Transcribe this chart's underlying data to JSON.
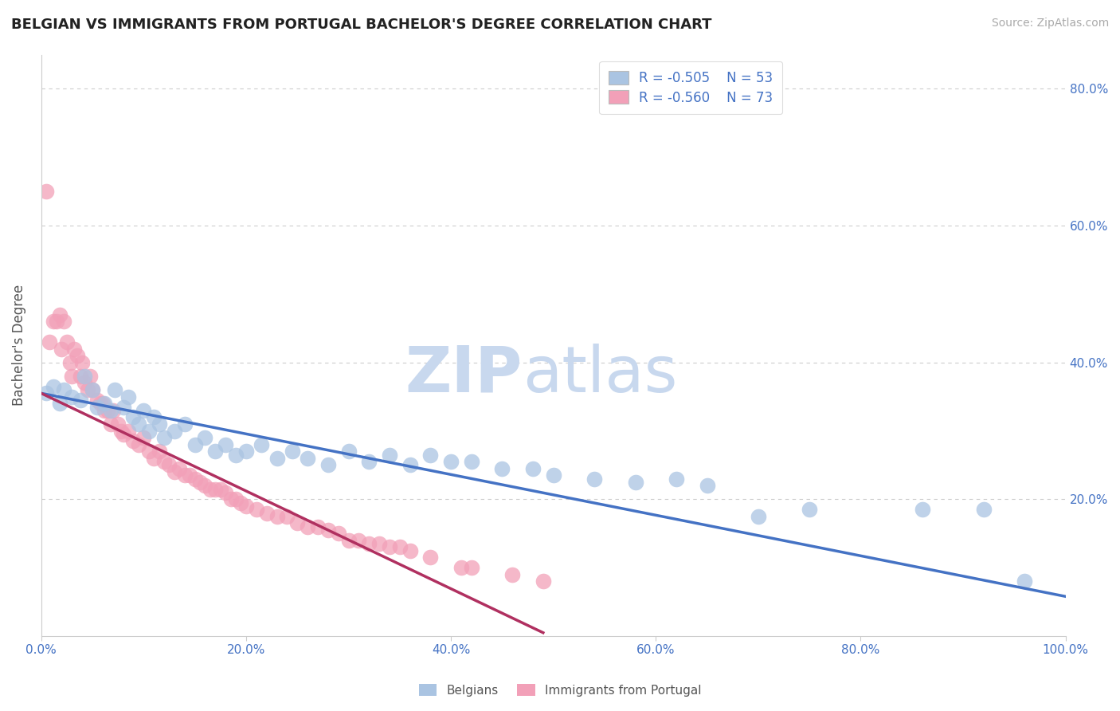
{
  "title": "BELGIAN VS IMMIGRANTS FROM PORTUGAL BACHELOR'S DEGREE CORRELATION CHART",
  "source": "Source: ZipAtlas.com",
  "ylabel": "Bachelor's Degree",
  "xlim": [
    0,
    1.0
  ],
  "ylim": [
    0,
    0.85
  ],
  "xticks": [
    0.0,
    0.2,
    0.4,
    0.6,
    0.8,
    1.0
  ],
  "xticklabels": [
    "0.0%",
    "20.0%",
    "40.0%",
    "60.0%",
    "80.0%",
    "100.0%"
  ],
  "yticks_right": [
    0.2,
    0.4,
    0.6,
    0.8
  ],
  "yticklabels_right": [
    "20.0%",
    "40.0%",
    "60.0%",
    "80.0%"
  ],
  "legend_r_blue": "-0.505",
  "legend_n_blue": "53",
  "legend_r_pink": "-0.560",
  "legend_n_pink": "73",
  "blue_color": "#aac4e2",
  "pink_color": "#f2a0b8",
  "line_blue_color": "#4472c4",
  "line_pink_color": "#b03060",
  "legend_label_blue": "Belgians",
  "legend_label_pink": "Immigrants from Portugal",
  "blue_scatter_x": [
    0.005,
    0.012,
    0.018,
    0.022,
    0.03,
    0.038,
    0.042,
    0.05,
    0.055,
    0.062,
    0.068,
    0.072,
    0.08,
    0.085,
    0.09,
    0.095,
    0.1,
    0.105,
    0.11,
    0.115,
    0.12,
    0.13,
    0.14,
    0.15,
    0.16,
    0.17,
    0.18,
    0.19,
    0.2,
    0.215,
    0.23,
    0.245,
    0.26,
    0.28,
    0.3,
    0.32,
    0.34,
    0.36,
    0.38,
    0.4,
    0.42,
    0.45,
    0.48,
    0.5,
    0.54,
    0.58,
    0.62,
    0.65,
    0.7,
    0.75,
    0.86,
    0.92,
    0.96
  ],
  "blue_scatter_y": [
    0.355,
    0.365,
    0.34,
    0.36,
    0.35,
    0.345,
    0.38,
    0.36,
    0.335,
    0.34,
    0.33,
    0.36,
    0.335,
    0.35,
    0.32,
    0.31,
    0.33,
    0.3,
    0.32,
    0.31,
    0.29,
    0.3,
    0.31,
    0.28,
    0.29,
    0.27,
    0.28,
    0.265,
    0.27,
    0.28,
    0.26,
    0.27,
    0.26,
    0.25,
    0.27,
    0.255,
    0.265,
    0.25,
    0.265,
    0.255,
    0.255,
    0.245,
    0.245,
    0.235,
    0.23,
    0.225,
    0.23,
    0.22,
    0.175,
    0.185,
    0.185,
    0.185,
    0.08
  ],
  "pink_scatter_x": [
    0.005,
    0.008,
    0.012,
    0.015,
    0.018,
    0.02,
    0.022,
    0.025,
    0.028,
    0.03,
    0.032,
    0.035,
    0.038,
    0.04,
    0.042,
    0.045,
    0.048,
    0.05,
    0.055,
    0.058,
    0.06,
    0.062,
    0.065,
    0.068,
    0.07,
    0.075,
    0.078,
    0.08,
    0.085,
    0.09,
    0.095,
    0.1,
    0.105,
    0.11,
    0.115,
    0.12,
    0.125,
    0.13,
    0.135,
    0.14,
    0.145,
    0.15,
    0.155,
    0.16,
    0.165,
    0.17,
    0.175,
    0.18,
    0.185,
    0.19,
    0.195,
    0.2,
    0.21,
    0.22,
    0.23,
    0.24,
    0.25,
    0.26,
    0.27,
    0.28,
    0.29,
    0.3,
    0.31,
    0.32,
    0.33,
    0.34,
    0.35,
    0.36,
    0.38,
    0.41,
    0.42,
    0.46,
    0.49
  ],
  "pink_scatter_y": [
    0.65,
    0.43,
    0.46,
    0.46,
    0.47,
    0.42,
    0.46,
    0.43,
    0.4,
    0.38,
    0.42,
    0.41,
    0.38,
    0.4,
    0.37,
    0.36,
    0.38,
    0.36,
    0.345,
    0.34,
    0.34,
    0.33,
    0.33,
    0.31,
    0.33,
    0.31,
    0.3,
    0.295,
    0.3,
    0.285,
    0.28,
    0.29,
    0.27,
    0.26,
    0.27,
    0.255,
    0.25,
    0.24,
    0.245,
    0.235,
    0.235,
    0.23,
    0.225,
    0.22,
    0.215,
    0.215,
    0.215,
    0.21,
    0.2,
    0.2,
    0.195,
    0.19,
    0.185,
    0.18,
    0.175,
    0.175,
    0.165,
    0.16,
    0.16,
    0.155,
    0.15,
    0.14,
    0.14,
    0.135,
    0.135,
    0.13,
    0.13,
    0.125,
    0.115,
    0.1,
    0.1,
    0.09,
    0.08
  ],
  "blue_line_x": [
    0.0,
    1.0
  ],
  "blue_line_y": [
    0.355,
    0.058
  ],
  "pink_line_x": [
    0.0,
    0.49
  ],
  "pink_line_y": [
    0.355,
    0.005
  ],
  "title_fontsize": 13,
  "axis_label_color": "#555555",
  "tick_color": "#4472c4",
  "grid_color": "#cccccc",
  "background_color": "#ffffff"
}
